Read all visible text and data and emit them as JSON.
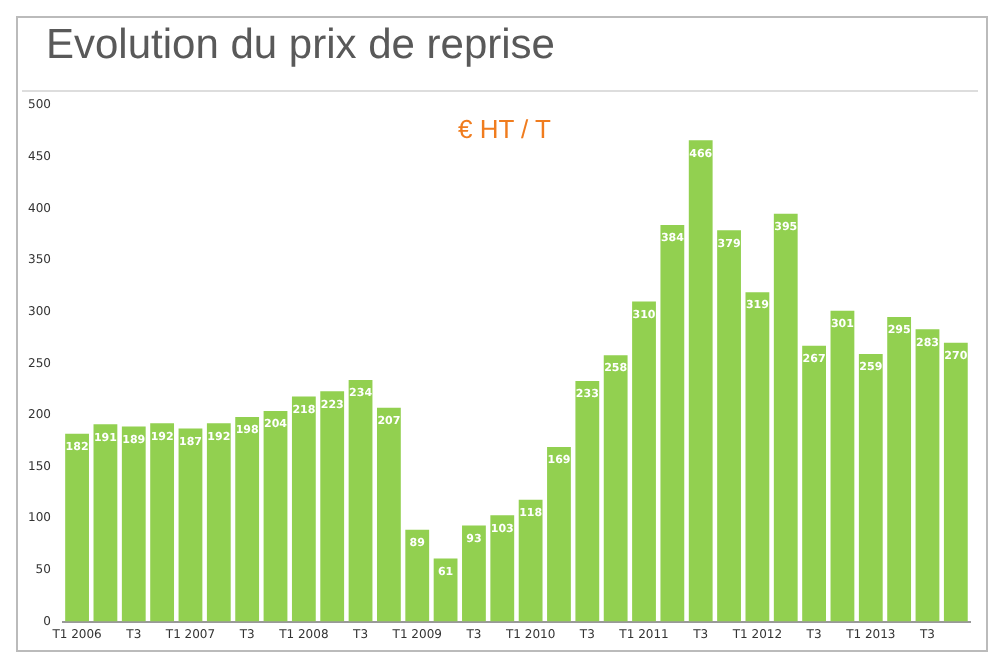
{
  "chart_data": {
    "type": "bar",
    "title": "Evolution du prix de reprise",
    "annotations": [
      "€ HT / T"
    ],
    "categories": [
      "T1 2006",
      null,
      "T3",
      null,
      "T1 2007",
      null,
      "T3",
      null,
      "T1 2008",
      null,
      "T3",
      null,
      "T1 2009",
      null,
      "T3",
      null,
      "T1 2010",
      null,
      "T3",
      null,
      "T1 2011",
      null,
      "T3",
      null,
      "T1 2012",
      null,
      "T3",
      null,
      "T1 2013",
      null,
      "T3",
      null
    ],
    "values": [
      182,
      191,
      189,
      192,
      187,
      192,
      198,
      204,
      218,
      223,
      234,
      207,
      89,
      61,
      93,
      103,
      118,
      169,
      233,
      258,
      310,
      384,
      466,
      379,
      319,
      395,
      267,
      301,
      259,
      295,
      283,
      270
    ],
    "color": "#92d050",
    "ylim": [
      0,
      500
    ],
    "yticks": [
      0,
      50,
      100,
      150,
      200,
      250,
      300,
      350,
      400,
      450,
      500
    ],
    "data_labels": true,
    "legend": false,
    "grid": false
  }
}
